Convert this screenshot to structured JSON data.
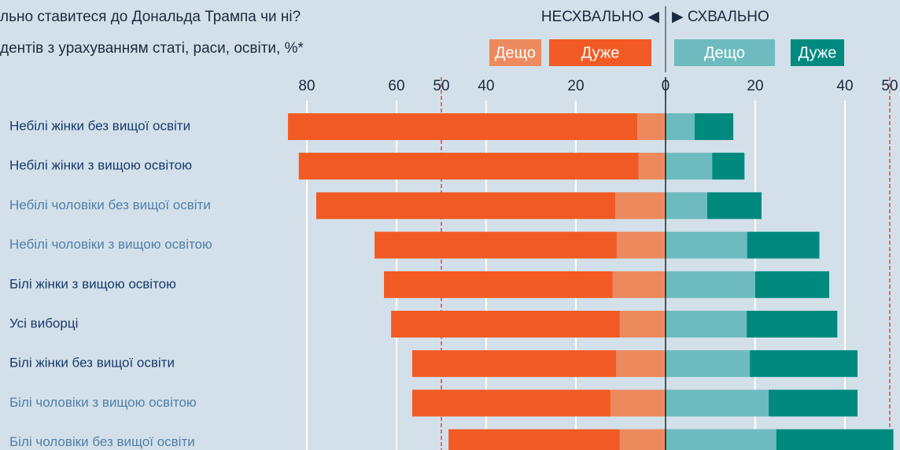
{
  "chart_data": {
    "type": "diverging-bar",
    "title": "льно ставитеся до Дональда Трампа чи ні?",
    "subtitle": "дентів з урахуванням статі, раси, освіти, %*",
    "disapprove_label": "НЕСХВАЛЬНО ◀",
    "approve_label": "▶ СХВАЛЬНО",
    "categories": [
      "Небілі жінки без вищої освіти",
      "Небілі жінки з вищою освітою",
      "Небілі чоловіки без вищої освіти",
      "Небілі чоловіки з вищою освітою",
      "Білі жінки з вищою освітою",
      "Усі виборці",
      "Білі жінки без вищої освіти",
      "Білі чоловіки з вищою освітою",
      "Білі чоловіки без вищої освіти"
    ],
    "category_colors": [
      "#173a6b",
      "#173a6b",
      "#4f7fa8",
      "#4f7fa8",
      "#173a6b",
      "#173a6b",
      "#173a6b",
      "#4f7fa8",
      "#4f7fa8"
    ],
    "series": [
      {
        "name": "Дещо",
        "color": "#ec8a5e",
        "values": [
          -6.3,
          -6,
          -11.2,
          -10.9,
          -11.8,
          -10.2,
          -11,
          -12.3,
          -10.2
        ]
      },
      {
        "name": "Дуже",
        "color": "#f15a24",
        "values": [
          -77.9,
          -75.8,
          -66.7,
          -54,
          -51,
          -51,
          -45.5,
          -44.2,
          -38.2
        ]
      },
      {
        "name": "Дещо",
        "color": "#6dbbbf",
        "values": [
          6.5,
          10.4,
          9.3,
          18.2,
          20,
          18.1,
          18.8,
          23,
          24.7
        ]
      },
      {
        "name": "Дуже",
        "color": "#00897f",
        "values": [
          8.6,
          7.2,
          12.1,
          16.1,
          16.5,
          20.2,
          24,
          19.8,
          26.1
        ]
      }
    ],
    "xlim": [
      -85,
      52
    ],
    "xticks": [
      {
        "value": -80,
        "label": "80"
      },
      {
        "value": -60,
        "label": "60"
      },
      {
        "value": -40,
        "label": "40"
      },
      {
        "value": -20,
        "label": "20"
      },
      0,
      20,
      40
    ],
    "reference_lines": [
      {
        "value": -50,
        "label": "50"
      },
      {
        "value": 50,
        "label": "50"
      }
    ],
    "grid": true
  }
}
